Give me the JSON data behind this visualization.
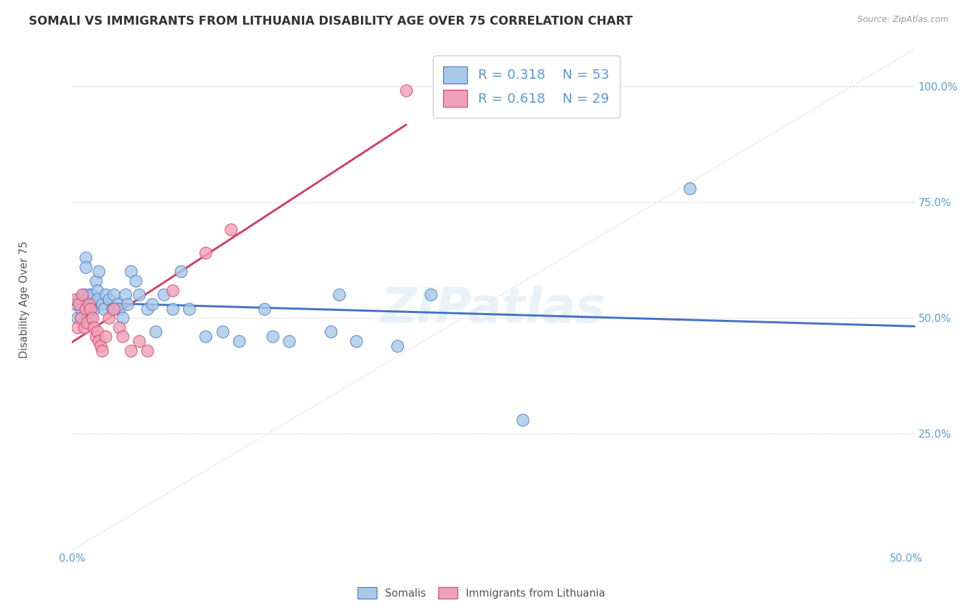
{
  "title": "SOMALI VS IMMIGRANTS FROM LITHUANIA DISABILITY AGE OVER 75 CORRELATION CHART",
  "source": "Source: ZipAtlas.com",
  "ylabel": "Disability Age Over 75",
  "xlim": [
    0.0,
    0.505
  ],
  "ylim": [
    0.0,
    1.08
  ],
  "color_somali": "#a8c8e8",
  "color_lithuania": "#f0a0b8",
  "color_edge_somali": "#4472c4",
  "color_edge_lithuania": "#d04060",
  "color_line_somali": "#4472c4",
  "color_line_lithuania": "#d04060",
  "color_title": "#333333",
  "color_axis": "#5b9bd5",
  "legend_r1": "R = 0.318",
  "legend_n1": "N = 53",
  "legend_r2": "R = 0.618",
  "legend_n2": "N = 29",
  "watermark": "ZIPatlas",
  "somali_x": [
    0.002,
    0.003,
    0.004,
    0.005,
    0.006,
    0.007,
    0.008,
    0.008,
    0.009,
    0.01,
    0.01,
    0.011,
    0.012,
    0.013,
    0.013,
    0.014,
    0.015,
    0.015,
    0.016,
    0.018,
    0.019,
    0.02,
    0.022,
    0.024,
    0.025,
    0.027,
    0.028,
    0.03,
    0.032,
    0.033,
    0.035,
    0.038,
    0.04,
    0.045,
    0.048,
    0.05,
    0.055,
    0.06,
    0.065,
    0.07,
    0.08,
    0.09,
    0.1,
    0.115,
    0.12,
    0.13,
    0.155,
    0.16,
    0.17,
    0.195,
    0.215,
    0.27,
    0.37
  ],
  "somali_y": [
    0.53,
    0.5,
    0.54,
    0.52,
    0.5,
    0.55,
    0.63,
    0.61,
    0.53,
    0.55,
    0.52,
    0.5,
    0.55,
    0.53,
    0.52,
    0.58,
    0.56,
    0.54,
    0.6,
    0.53,
    0.52,
    0.55,
    0.54,
    0.52,
    0.55,
    0.53,
    0.52,
    0.5,
    0.55,
    0.53,
    0.6,
    0.58,
    0.55,
    0.52,
    0.53,
    0.47,
    0.55,
    0.52,
    0.6,
    0.52,
    0.46,
    0.47,
    0.45,
    0.52,
    0.46,
    0.45,
    0.47,
    0.55,
    0.45,
    0.44,
    0.55,
    0.28,
    0.78
  ],
  "lithuania_x": [
    0.002,
    0.003,
    0.004,
    0.005,
    0.006,
    0.007,
    0.008,
    0.009,
    0.01,
    0.011,
    0.012,
    0.013,
    0.014,
    0.015,
    0.016,
    0.017,
    0.018,
    0.02,
    0.022,
    0.025,
    0.028,
    0.03,
    0.035,
    0.04,
    0.045,
    0.06,
    0.08,
    0.095,
    0.2
  ],
  "lithuania_y": [
    0.54,
    0.48,
    0.53,
    0.5,
    0.55,
    0.48,
    0.52,
    0.49,
    0.53,
    0.52,
    0.5,
    0.48,
    0.46,
    0.47,
    0.45,
    0.44,
    0.43,
    0.46,
    0.5,
    0.52,
    0.48,
    0.46,
    0.43,
    0.45,
    0.43,
    0.56,
    0.64,
    0.69,
    0.99
  ]
}
